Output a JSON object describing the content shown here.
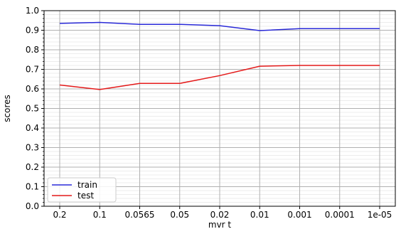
{
  "chart_data": {
    "type": "line",
    "title": "",
    "xlabel": "mvr t",
    "ylabel": "scores",
    "categories": [
      "0.2",
      "0.1",
      "0.0565",
      "0.05",
      "0.02",
      "0.01",
      "0.001",
      "0.0001",
      "1e-05"
    ],
    "series": [
      {
        "name": "train",
        "color": "#2a2ad8",
        "values": [
          0.935,
          0.94,
          0.93,
          0.93,
          0.923,
          0.898,
          0.908,
          0.908,
          0.908
        ]
      },
      {
        "name": "test",
        "color": "#e41a1a",
        "values": [
          0.62,
          0.597,
          0.628,
          0.628,
          0.668,
          0.716,
          0.72,
          0.72,
          0.72
        ]
      }
    ],
    "ylim": [
      0.0,
      1.0
    ],
    "yticks": [
      "0.0",
      "0.1",
      "0.2",
      "0.3",
      "0.4",
      "0.5",
      "0.6",
      "0.7",
      "0.8",
      "0.9",
      "1.0"
    ],
    "grid": true,
    "legend_position": "lower-left"
  }
}
